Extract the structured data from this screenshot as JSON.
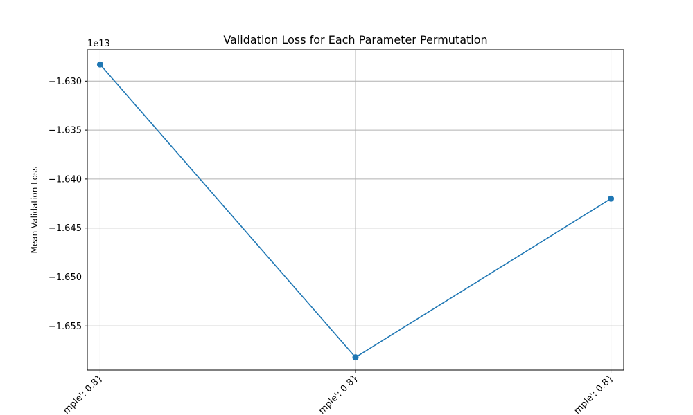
{
  "chart_data": {
    "type": "line",
    "title": "Validation Loss for Each Parameter Permutation",
    "xlabel": "",
    "ylabel": "Mean Validation Loss",
    "y_offset_label": "1e13",
    "y_multiplier": 10000000000000,
    "categories": [
      "mple': 0.8}",
      "mple': 0.8}",
      "mple': 0.8}"
    ],
    "series": [
      {
        "values": [
          -1.6283,
          -1.6582,
          -1.642
        ]
      }
    ],
    "ylim": [
      -1.6595,
      -1.6268
    ],
    "yticks": [
      -1.655,
      -1.65,
      -1.645,
      -1.64,
      -1.635,
      -1.63
    ],
    "ytick_labels": [
      "−1.655",
      "−1.650",
      "−1.645",
      "−1.640",
      "−1.635",
      "−1.630"
    ],
    "grid": true,
    "line_color": "#1f77b4",
    "axis_color": "#000000",
    "grid_color": "#b0b0b0"
  }
}
